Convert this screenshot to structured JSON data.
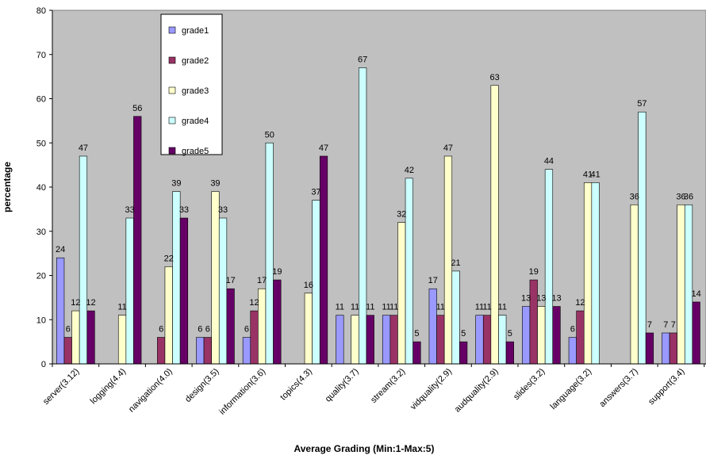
{
  "chart_data": {
    "type": "bar",
    "xlabel": "Average Grading (Min:1-Max:5)",
    "ylabel": "percentage",
    "ylim": [
      0,
      80
    ],
    "yticks": [
      0,
      10,
      20,
      30,
      40,
      50,
      60,
      70,
      80
    ],
    "grid": false,
    "legend_position": "top-left",
    "plot_background": "#c0c0c0",
    "categories": [
      "server(3.12)",
      "logging(4.4)",
      "navigation(4.0)",
      "design(3.5)",
      "information(3.6)",
      "topics(4.3)",
      "quality(3.7)",
      "stream(3.2)",
      "vidquality(2.9)",
      "audquality(2.9)",
      "slides(3.2)",
      "language(3.2)",
      "answers(3.7)",
      "support(3.4)"
    ],
    "series": [
      {
        "name": "grade1",
        "color": "#9999ff",
        "values": [
          24,
          null,
          null,
          6,
          6,
          null,
          11,
          11,
          17,
          11,
          13,
          6,
          null,
          7
        ],
        "labels": [
          "24",
          "",
          "",
          "6",
          "6",
          "",
          "11",
          "11",
          "17",
          "11",
          "13",
          "6",
          "",
          "7"
        ]
      },
      {
        "name": "grade2",
        "color": "#993366",
        "values": [
          6,
          null,
          6,
          6,
          12,
          null,
          null,
          11,
          11,
          11,
          19,
          12,
          null,
          7
        ],
        "labels": [
          "6",
          "",
          "6",
          "6",
          "12",
          "",
          "",
          "11",
          "11",
          "11",
          "19",
          "12",
          "",
          "7"
        ]
      },
      {
        "name": "grade3",
        "color": "#ffffcc",
        "values": [
          12,
          11,
          22,
          39,
          17,
          16,
          11,
          32,
          47,
          63,
          13,
          41,
          36,
          36
        ],
        "labels": [
          "12",
          "11",
          "22",
          "39",
          "17",
          "16",
          "11",
          "32",
          "47",
          "63",
          "13",
          "41",
          "36",
          "36"
        ]
      },
      {
        "name": "grade4",
        "color": "#ccffff",
        "values": [
          47,
          33,
          39,
          33,
          50,
          37,
          67,
          42,
          21,
          11,
          44,
          41,
          57,
          36
        ],
        "labels": [
          "47",
          "33",
          "39",
          "33",
          "50",
          "37",
          "67",
          "42",
          "21",
          "11",
          "44",
          "41",
          "57",
          "36"
        ]
      },
      {
        "name": "grade5",
        "color": "#660066",
        "values": [
          12,
          56,
          33,
          17,
          19,
          47,
          11,
          5,
          5,
          5,
          13,
          null,
          7,
          14
        ],
        "labels": [
          "12",
          "56",
          "33",
          "17",
          "19",
          "47",
          "11",
          "5",
          "5",
          "5",
          "13",
          "",
          "7",
          "14"
        ]
      }
    ]
  }
}
